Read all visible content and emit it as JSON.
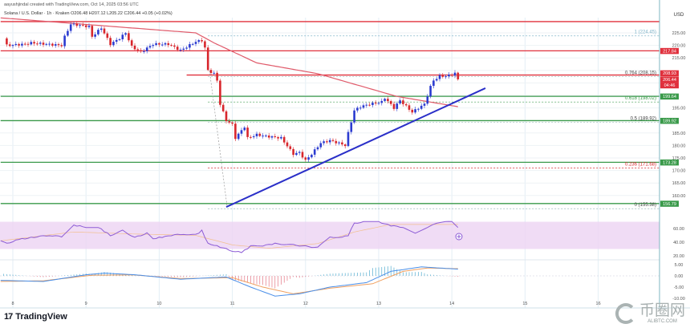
{
  "header": {
    "author_line": "aayushjindal created with TradingView.com, Oct 14, 2025 03:56 UTC",
    "symbol_line": "Solana / U.S. Dollar · 1h · Kraken",
    "ohlc": "O206.48 H207.12 L205.22 C206.44 +0.05 (+0.02%)"
  },
  "footer": {
    "brand": "TradingView",
    "watermark_cn": "币圈网",
    "watermark_en": "ALIBTC.COM"
  },
  "colors": {
    "up": "#2b3bd0",
    "down": "#d8262c",
    "ma": "#e05a6a",
    "resistance": "#e0303c",
    "support": "#3a9a4a",
    "trendline": "#2a2fc8",
    "rsi": "#8d5cd6",
    "rsi_band": "#ecd3f2",
    "macd": "#4a8fe8",
    "signal": "#f0a060",
    "grid": "#e3eef6"
  },
  "chart_data": {
    "type": "candlestick",
    "title": "Solana / U.S. Dollar · 1h · Kraken",
    "currency_label": "USD",
    "x_unit": "hours since Oct 8 00:00",
    "x_ticks": [
      {
        "h": 0,
        "label": "8"
      },
      {
        "h": 24,
        "label": "9"
      },
      {
        "h": 48,
        "label": "10"
      },
      {
        "h": 72,
        "label": "11"
      },
      {
        "h": 96,
        "label": "12"
      },
      {
        "h": 120,
        "label": "13"
      },
      {
        "h": 144,
        "label": "14"
      },
      {
        "h": 168,
        "label": "15"
      },
      {
        "h": 192,
        "label": "16"
      }
    ],
    "y_ticks": [
      "225.00",
      "220.00",
      "215.00",
      "195.00",
      "185.00",
      "180.00",
      "175.00",
      "170.00",
      "165.00",
      "160.00"
    ],
    "ylim": [
      152,
      232
    ],
    "close_keypoints": [
      [
        -3,
        222.8
      ],
      [
        -2,
        220
      ],
      [
        4,
        220.5
      ],
      [
        6,
        221
      ],
      [
        16,
        220
      ],
      [
        17,
        223.5
      ],
      [
        19,
        228.5
      ],
      [
        25,
        227.5
      ],
      [
        26,
        223.5
      ],
      [
        29,
        227
      ],
      [
        32,
        220.5
      ],
      [
        35,
        222.8
      ],
      [
        37,
        225
      ],
      [
        39,
        219.5
      ],
      [
        42,
        217.3
      ],
      [
        46,
        220.5
      ],
      [
        51,
        220.5
      ],
      [
        55,
        218
      ],
      [
        60,
        221.5
      ],
      [
        62,
        222
      ],
      [
        63,
        219
      ],
      [
        64,
        210
      ],
      [
        66,
        208.7
      ],
      [
        67,
        206
      ],
      [
        68,
        196.5
      ],
      [
        70,
        190
      ],
      [
        72,
        188.4
      ],
      [
        73,
        183
      ],
      [
        76,
        187.5
      ],
      [
        77,
        183
      ],
      [
        80,
        184.3
      ],
      [
        83,
        183.7
      ],
      [
        88,
        183
      ],
      [
        92,
        176.6
      ],
      [
        94,
        177.2
      ],
      [
        96,
        174
      ],
      [
        98,
        176.6
      ],
      [
        101,
        181
      ],
      [
        104,
        182
      ],
      [
        108,
        180.5
      ],
      [
        109,
        180
      ],
      [
        110,
        185
      ],
      [
        112,
        194
      ],
      [
        114,
        195.5
      ],
      [
        117,
        196.5
      ],
      [
        121,
        197.4
      ],
      [
        122,
        199
      ],
      [
        125,
        195
      ],
      [
        127,
        198
      ],
      [
        131,
        193.3
      ],
      [
        133,
        195
      ],
      [
        135,
        196.5
      ],
      [
        137,
        203.5
      ],
      [
        138,
        206
      ],
      [
        140,
        207.7
      ],
      [
        142,
        207.7
      ],
      [
        144,
        208.3
      ],
      [
        145,
        208.9
      ],
      [
        146,
        206.44
      ]
    ],
    "moving_average_keypoints": [
      [
        -4,
        231
      ],
      [
        60,
        225
      ],
      [
        66,
        221
      ],
      [
        80,
        213
      ],
      [
        100,
        208.7
      ],
      [
        126,
        199.6
      ],
      [
        146,
        195.5
      ]
    ],
    "trend_line": {
      "from_h": 70,
      "from_p": 155.4,
      "to_h": 155,
      "to_p": 202.9
    },
    "horizontal_levels": [
      {
        "price": 229.5,
        "kind": "resistance",
        "from_h": -4
      },
      {
        "price": 217.84,
        "kind": "resistance",
        "from_h": -4
      },
      {
        "price": 208.15,
        "kind": "resistance",
        "from_h": 57
      },
      {
        "price": 199.64,
        "kind": "support",
        "from_h": -4
      },
      {
        "price": 189.92,
        "kind": "support",
        "from_h": -4
      },
      {
        "price": 173.28,
        "kind": "support",
        "from_h": -4
      },
      {
        "price": 156.79,
        "kind": "support",
        "from_h": -4
      }
    ],
    "fibonacci": [
      {
        "label": "1 (224.45)",
        "price": 224.45,
        "color": "#7fb3c8"
      },
      {
        "label": "0.764 (208.15)",
        "price": 208.15,
        "color": "#444"
      },
      {
        "label": "0.618 (198.02)",
        "price": 198.02,
        "color": "#3a9a4a"
      },
      {
        "label": "0.5 (189.92)",
        "price": 189.92,
        "color": "#444"
      },
      {
        "label": "0.236 (171.68)",
        "price": 171.68,
        "color": "#d8262c"
      },
      {
        "label": "0 (155.38)",
        "price": 155.38,
        "color": "#444"
      }
    ],
    "price_tags": [
      {
        "text": "217.84",
        "price": 217.84,
        "color": "#e0303c"
      },
      {
        "text": "208.93",
        "price": 208.93,
        "color": "#e0303c"
      },
      {
        "text": "206.44",
        "price": 206.44,
        "color": "#e0303c"
      },
      {
        "text": "04:46",
        "price": 204.1,
        "color": "#e0303c"
      },
      {
        "text": "199.64",
        "price": 199.64,
        "color": "#3a9a4a"
      },
      {
        "text": "189.92",
        "price": 189.92,
        "color": "#3a9a4a"
      },
      {
        "text": "173.28",
        "price": 173.28,
        "color": "#3a9a4a"
      },
      {
        "text": "156.79",
        "price": 156.79,
        "color": "#3a9a4a"
      }
    ],
    "rsi": {
      "ticks": [
        "60.00",
        "40.00",
        "20.00"
      ],
      "band": [
        30,
        70
      ],
      "keypoints": [
        [
          -4,
          42
        ],
        [
          -2,
          38
        ],
        [
          2,
          44
        ],
        [
          8,
          48
        ],
        [
          12,
          50
        ],
        [
          16,
          48
        ],
        [
          20,
          65
        ],
        [
          24,
          62
        ],
        [
          28,
          62
        ],
        [
          32,
          50
        ],
        [
          36,
          57
        ],
        [
          40,
          47
        ],
        [
          44,
          53
        ],
        [
          46,
          45
        ],
        [
          52,
          50
        ],
        [
          56,
          52
        ],
        [
          60,
          51
        ],
        [
          62,
          57
        ],
        [
          64,
          38
        ],
        [
          68,
          33
        ],
        [
          72,
          27
        ],
        [
          75,
          25
        ],
        [
          78,
          34
        ],
        [
          82,
          35
        ],
        [
          86,
          38
        ],
        [
          92,
          36
        ],
        [
          96,
          34
        ],
        [
          100,
          32
        ],
        [
          104,
          48
        ],
        [
          108,
          47
        ],
        [
          110,
          50
        ],
        [
          112,
          68
        ],
        [
          116,
          70
        ],
        [
          120,
          70
        ],
        [
          124,
          64
        ],
        [
          128,
          62
        ],
        [
          132,
          54
        ],
        [
          136,
          62
        ],
        [
          140,
          69
        ],
        [
          144,
          70
        ],
        [
          146,
          62
        ]
      ],
      "signal_keypoints": [
        [
          -4,
          42
        ],
        [
          20,
          55
        ],
        [
          40,
          52
        ],
        [
          60,
          50
        ],
        [
          72,
          36
        ],
        [
          84,
          31
        ],
        [
          100,
          38
        ],
        [
          112,
          55
        ],
        [
          124,
          66
        ],
        [
          146,
          66
        ]
      ]
    },
    "macd": {
      "ticks": [
        "5.00",
        "0.00",
        "-5.00",
        "-10.00"
      ],
      "macd_keypoints": [
        [
          -4,
          -2
        ],
        [
          10,
          -2.5
        ],
        [
          24,
          0.5
        ],
        [
          30,
          1.2
        ],
        [
          40,
          0.5
        ],
        [
          55,
          -1.5
        ],
        [
          70,
          -0.5
        ],
        [
          78,
          -5
        ],
        [
          86,
          -9
        ],
        [
          94,
          -8
        ],
        [
          104,
          -5
        ],
        [
          116,
          -3
        ],
        [
          124,
          2
        ],
        [
          134,
          4
        ],
        [
          140,
          3.5
        ],
        [
          146,
          3
        ]
      ],
      "signal_keypoints": [
        [
          -4,
          -2.5
        ],
        [
          10,
          -2.2
        ],
        [
          26,
          0.3
        ],
        [
          40,
          0.4
        ],
        [
          55,
          -1.2
        ],
        [
          72,
          -0.8
        ],
        [
          82,
          -5
        ],
        [
          92,
          -8
        ],
        [
          104,
          -5.5
        ],
        [
          118,
          -3.5
        ],
        [
          128,
          2
        ],
        [
          136,
          3.5
        ],
        [
          146,
          3.2
        ]
      ]
    }
  }
}
